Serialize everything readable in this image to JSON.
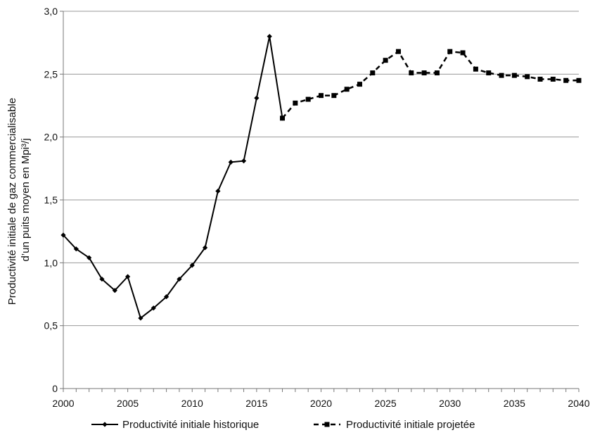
{
  "chart_data": {
    "type": "line",
    "ylabel_lines": [
      "Productivité initiale de gaz commercialisable",
      "d’un puits moyen en Mpi³/j"
    ],
    "xlim": [
      2000,
      2040
    ],
    "ylim": [
      0,
      3.0
    ],
    "x_ticks": [
      "2000",
      "2005",
      "2010",
      "2015",
      "2020",
      "2025",
      "2030",
      "2035",
      "2040"
    ],
    "y_ticks": [
      "0",
      "0,5",
      "1,0",
      "1,5",
      "2,0",
      "2,5",
      "3,0"
    ],
    "grid": "horizontal",
    "legend_position": "bottom",
    "series": [
      {
        "name": "Productivité initiale historique",
        "style": "solid",
        "marker": "diamond",
        "color": "#000000",
        "x": [
          2000,
          2001,
          2002,
          2003,
          2004,
          2005,
          2006,
          2007,
          2008,
          2009,
          2010,
          2011,
          2012,
          2013,
          2014,
          2015,
          2016,
          2017
        ],
        "y": [
          1.22,
          1.11,
          1.04,
          0.87,
          0.78,
          0.89,
          0.56,
          0.64,
          0.73,
          0.87,
          0.98,
          1.12,
          1.57,
          1.8,
          1.81,
          2.31,
          2.8,
          2.15
        ]
      },
      {
        "name": "Productivité initiale projetée",
        "style": "dashed",
        "marker": "square",
        "color": "#000000",
        "x": [
          2017,
          2018,
          2019,
          2020,
          2021,
          2022,
          2023,
          2024,
          2025,
          2026,
          2027,
          2028,
          2029,
          2030,
          2031,
          2032,
          2033,
          2034,
          2035,
          2036,
          2037,
          2038,
          2039,
          2040
        ],
        "y": [
          2.15,
          2.27,
          2.3,
          2.33,
          2.33,
          2.38,
          2.42,
          2.51,
          2.61,
          2.68,
          2.51,
          2.51,
          2.51,
          2.68,
          2.67,
          2.54,
          2.51,
          2.49,
          2.49,
          2.48,
          2.46,
          2.46,
          2.45,
          2.45
        ]
      }
    ]
  }
}
